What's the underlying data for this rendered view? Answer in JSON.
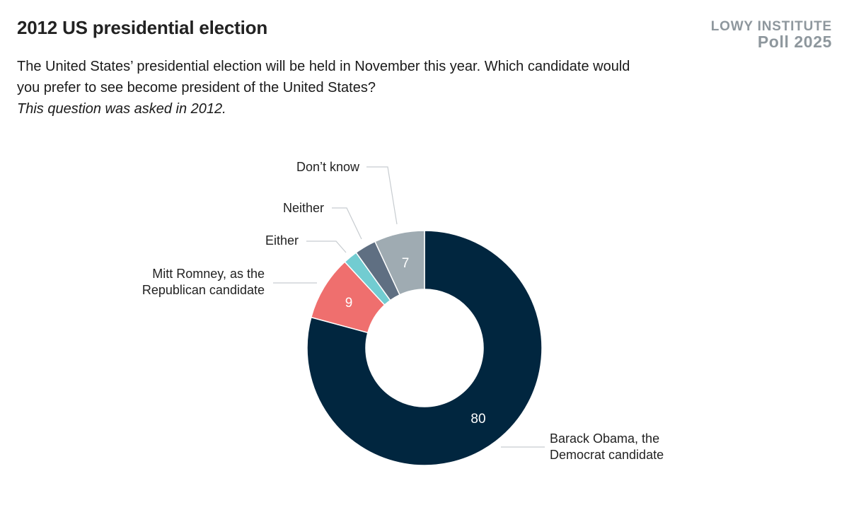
{
  "header": {
    "title": "2012 US presidential election",
    "subtitle": "The United States’ presidential election will be held in November this year. Which candidate would you prefer to see become president of the United States?",
    "note": "This question was asked in 2012."
  },
  "brand": {
    "name": "LOWY INSTITUTE",
    "poll": "Poll 2025"
  },
  "chart_data": {
    "type": "pie",
    "donut": true,
    "categories": [
      "Barack Obama, the Democrat candidate",
      "Mitt Romney, as the Republican candidate",
      "Either",
      "Neither",
      "Don’t know"
    ],
    "values": [
      80,
      9,
      2,
      3,
      7
    ],
    "data_labels": [
      "80",
      "9",
      "",
      "",
      "7"
    ],
    "colors": [
      "#01263f",
      "#ef6f6e",
      "#72ccd1",
      "#5f6f82",
      "#9fabb2"
    ],
    "legend": "none",
    "label_lines": [
      [
        "Barack Obama, the",
        "Democrat candidate"
      ],
      [
        "Mitt Romney, as the",
        "Republican candidate"
      ],
      [
        "Either"
      ],
      [
        "Neither"
      ],
      [
        "Don’t know"
      ]
    ]
  }
}
